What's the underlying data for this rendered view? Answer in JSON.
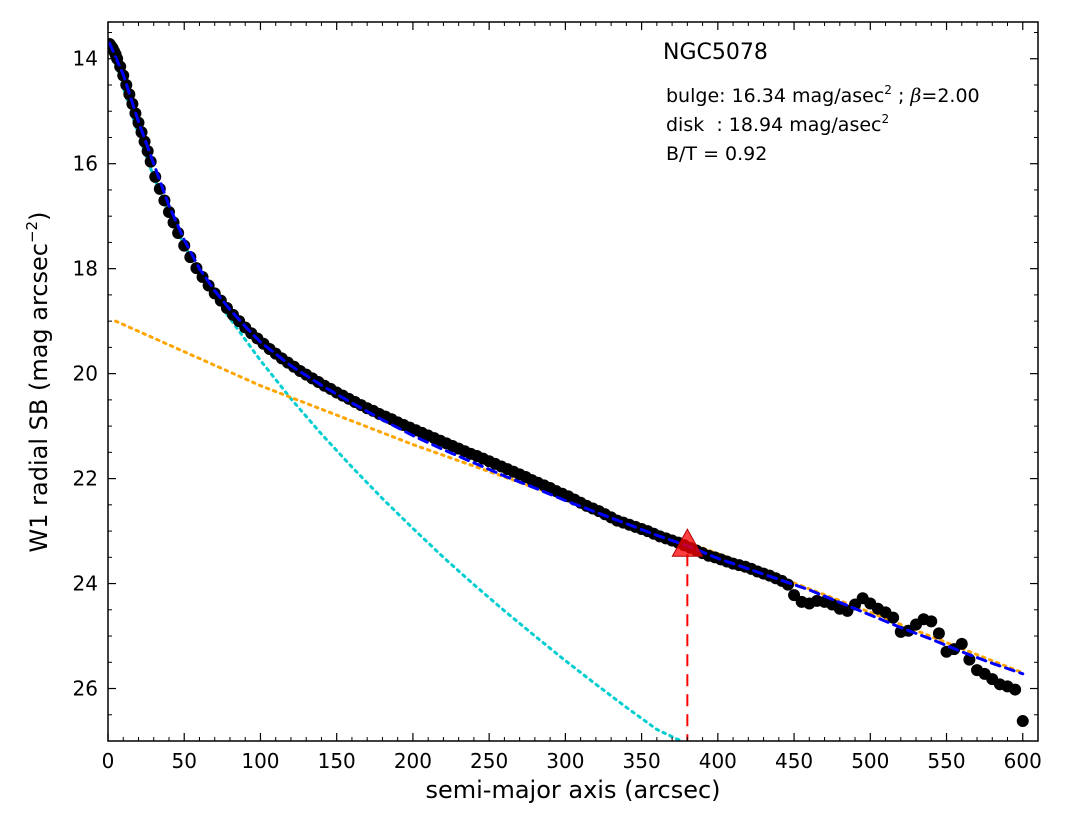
{
  "chart_data": {
    "type": "scatter",
    "title": "",
    "xlabel": "semi-major axis (arcsec)",
    "ylabel": "W1 radial SB (mag arcsec",
    "ylabel_sup": "−2",
    "ylabel_close": ")",
    "xlim": [
      0,
      610
    ],
    "ylim": [
      27.0,
      13.3
    ],
    "y_inverted": true,
    "xticks": [
      0,
      50,
      100,
      150,
      200,
      250,
      300,
      350,
      400,
      450,
      500,
      550,
      600
    ],
    "yticks": [
      14,
      16,
      18,
      20,
      22,
      24,
      26
    ],
    "grid": false,
    "annotations": {
      "galaxy": "NGC5078",
      "bulge_label": "bulge: 16.34 mag/asec",
      "bulge_exp": "2",
      "bulge_sep": " ; ",
      "bulge_beta_symbol": "β",
      "bulge_beta_value": "=2.00",
      "disk_label": "disk  : 18.94 mag/asec",
      "disk_exp": "2",
      "bt_label": "B/T = 0.92"
    },
    "colors": {
      "data_points": "#000000",
      "bulge_model": "#00ced1",
      "disk_model": "#ffa500",
      "total_model": "#0000ff",
      "marker": "#ff0000"
    },
    "series": [
      {
        "role": "observed",
        "style": "points",
        "x": [
          1,
          2,
          3,
          4,
          5,
          6,
          8,
          10,
          12,
          14,
          16,
          18,
          20,
          22,
          24,
          26,
          28,
          31,
          34,
          37,
          40,
          43,
          46,
          50,
          54,
          58,
          62,
          66,
          70,
          74,
          78,
          82,
          86,
          90,
          94,
          98,
          102,
          106,
          110,
          114,
          118,
          122,
          126,
          130,
          134,
          138,
          142,
          146,
          150,
          154,
          158,
          162,
          166,
          170,
          174,
          178,
          182,
          186,
          190,
          194,
          198,
          202,
          206,
          210,
          214,
          218,
          222,
          226,
          230,
          234,
          238,
          242,
          246,
          250,
          254,
          258,
          262,
          266,
          270,
          274,
          278,
          282,
          286,
          290,
          294,
          298,
          302,
          306,
          310,
          314,
          318,
          322,
          326,
          330,
          334,
          338,
          342,
          346,
          350,
          354,
          358,
          362,
          366,
          370,
          374,
          378,
          382,
          386,
          390,
          394,
          398,
          402,
          406,
          410,
          414,
          418,
          422,
          426,
          430,
          434,
          438,
          442,
          446,
          450,
          455,
          460,
          465,
          470,
          475,
          480,
          485,
          490,
          495,
          500,
          505,
          510,
          515,
          520,
          525,
          530,
          535,
          540,
          545,
          550,
          555,
          560,
          565,
          570,
          575,
          580,
          585,
          590,
          595,
          600
        ],
        "y": [
          13.72,
          13.76,
          13.8,
          13.86,
          13.92,
          14.0,
          14.15,
          14.32,
          14.5,
          14.68,
          14.86,
          15.04,
          15.22,
          15.4,
          15.58,
          15.76,
          15.96,
          16.25,
          16.48,
          16.7,
          16.92,
          17.12,
          17.32,
          17.56,
          17.78,
          17.99,
          18.16,
          18.32,
          18.47,
          18.61,
          18.75,
          18.88,
          19.0,
          19.12,
          19.23,
          19.33,
          19.43,
          19.53,
          19.62,
          19.71,
          19.79,
          19.87,
          19.95,
          20.02,
          20.09,
          20.16,
          20.23,
          20.29,
          20.36,
          20.42,
          20.48,
          20.54,
          20.6,
          20.66,
          20.71,
          20.77,
          20.82,
          20.87,
          20.93,
          20.98,
          21.03,
          21.08,
          21.13,
          21.18,
          21.23,
          21.28,
          21.33,
          21.38,
          21.43,
          21.48,
          21.53,
          21.57,
          21.62,
          21.67,
          21.72,
          21.77,
          21.82,
          21.87,
          21.92,
          21.97,
          22.03,
          22.08,
          22.13,
          22.18,
          22.24,
          22.29,
          22.34,
          22.4,
          22.46,
          22.52,
          22.57,
          22.62,
          22.68,
          22.74,
          22.8,
          22.84,
          22.88,
          22.92,
          22.96,
          23.0,
          23.05,
          23.1,
          23.14,
          23.18,
          23.22,
          23.27,
          23.32,
          23.37,
          23.42,
          23.47,
          23.5,
          23.54,
          23.58,
          23.62,
          23.65,
          23.68,
          23.72,
          23.77,
          23.81,
          23.85,
          23.9,
          23.95,
          24.02,
          24.22,
          24.35,
          24.38,
          24.33,
          24.35,
          24.4,
          24.48,
          24.52,
          24.4,
          24.28,
          24.38,
          24.48,
          24.55,
          24.65,
          24.92,
          24.9,
          24.78,
          24.68,
          24.72,
          24.95,
          25.3,
          25.25,
          25.15,
          25.45,
          25.65,
          25.72,
          25.82,
          25.92,
          25.96,
          26.02,
          26.62
        ]
      },
      {
        "role": "bulge-model",
        "style": "dotted",
        "x": [
          0,
          10,
          20,
          30,
          40,
          50,
          60,
          70,
          80,
          90,
          100,
          120,
          140,
          160,
          180,
          200,
          220,
          240,
          260,
          280,
          300,
          320,
          340,
          360,
          376
        ],
        "y": [
          13.65,
          14.55,
          15.45,
          16.25,
          16.95,
          17.55,
          18.1,
          18.55,
          18.95,
          19.35,
          19.75,
          20.48,
          21.15,
          21.78,
          22.38,
          22.95,
          23.5,
          24.02,
          24.52,
          25.0,
          25.47,
          25.92,
          26.36,
          26.78,
          27.0
        ]
      },
      {
        "role": "disk-model",
        "style": "dotted",
        "x": [
          5,
          100,
          200,
          300,
          400,
          500,
          600
        ],
        "y": [
          19.0,
          20.23,
          21.35,
          22.38,
          23.43,
          24.55,
          25.7
        ]
      },
      {
        "role": "total-model",
        "style": "dashed",
        "x": [
          1,
          10,
          20,
          30,
          40,
          50,
          60,
          70,
          80,
          90,
          100,
          120,
          140,
          160,
          180,
          200,
          220,
          240,
          260,
          280,
          300,
          320,
          340,
          360,
          380,
          400,
          420,
          440,
          460,
          480,
          500,
          520,
          540,
          560,
          580,
          600
        ],
        "y": [
          13.7,
          14.3,
          15.2,
          16.0,
          16.8,
          17.45,
          18.0,
          18.42,
          18.78,
          19.1,
          19.4,
          19.85,
          20.22,
          20.56,
          20.88,
          21.18,
          21.45,
          21.7,
          21.95,
          22.18,
          22.42,
          22.64,
          22.86,
          23.08,
          23.28,
          23.52,
          23.72,
          23.92,
          24.12,
          24.36,
          24.6,
          24.84,
          25.06,
          25.3,
          25.52,
          25.72
        ]
      }
    ],
    "marker": {
      "x": 380,
      "y": 23.25,
      "dashed_line_to": 27.0
    }
  }
}
